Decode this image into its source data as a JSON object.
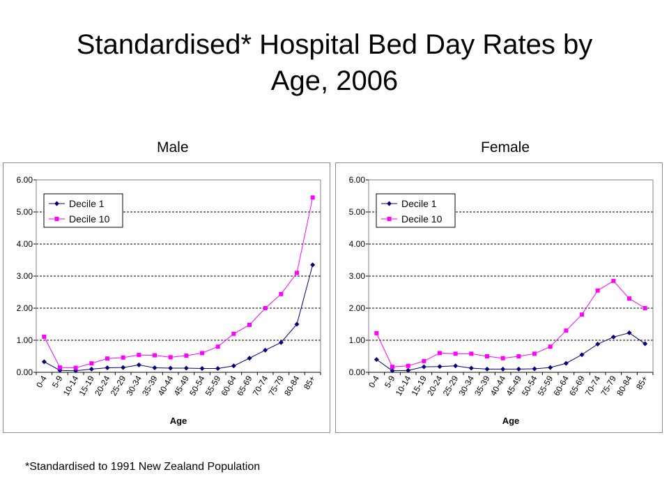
{
  "page": {
    "title_line1": "Standardised* Hospital Bed Day Rates by",
    "title_line2": "Age, 2006",
    "footnote": "*Standardised to 1991 New Zealand Population"
  },
  "chart_data": [
    {
      "type": "line",
      "panel_label": "Male",
      "xlabel": "Age",
      "ylabel": "",
      "ylim": [
        0,
        6
      ],
      "yticks": [
        "0.00",
        "1.00",
        "2.00",
        "3.00",
        "4.00",
        "5.00",
        "6.00"
      ],
      "grid": "horizontal dashed",
      "legend_position": "top-left",
      "categories": [
        "0-4",
        "5-9",
        "10-14",
        "15-19",
        "20-24",
        "25-29",
        "30-34",
        "35-39",
        "40-44",
        "45-49",
        "50-54",
        "55-59",
        "60-64",
        "65-69",
        "70-74",
        "75-79",
        "80-84",
        "85+"
      ],
      "series": [
        {
          "name": "Decile 1",
          "color": "#000080",
          "marker": "diamond",
          "values": [
            0.33,
            0.06,
            0.05,
            0.1,
            0.14,
            0.15,
            0.23,
            0.14,
            0.13,
            0.13,
            0.12,
            0.12,
            0.2,
            0.44,
            0.69,
            0.93,
            1.5,
            3.35
          ]
        },
        {
          "name": "Decile 10",
          "color": "#ff00ff",
          "marker": "square",
          "values": [
            1.11,
            0.15,
            0.14,
            0.28,
            0.43,
            0.46,
            0.54,
            0.53,
            0.47,
            0.52,
            0.6,
            0.8,
            1.2,
            1.48,
            2.0,
            2.44,
            3.1,
            5.45
          ]
        }
      ]
    },
    {
      "type": "line",
      "panel_label": "Female",
      "xlabel": "Age",
      "ylabel": "",
      "ylim": [
        0,
        6
      ],
      "yticks": [
        "0.00",
        "1.00",
        "2.00",
        "3.00",
        "4.00",
        "5.00",
        "6.00"
      ],
      "grid": "horizontal dashed",
      "legend_position": "top-left",
      "categories": [
        "0-4",
        "5-9",
        "10-14",
        "15-19",
        "20-24",
        "25-29",
        "30-34",
        "35-39",
        "40-44",
        "45-49",
        "50-54",
        "55-59",
        "60-64",
        "65-69",
        "70-74",
        "75-79",
        "80-84",
        "85+"
      ],
      "series": [
        {
          "name": "Decile 1",
          "color": "#000080",
          "marker": "diamond",
          "values": [
            0.4,
            0.05,
            0.06,
            0.17,
            0.18,
            0.2,
            0.13,
            0.1,
            0.1,
            0.1,
            0.11,
            0.15,
            0.28,
            0.55,
            0.88,
            1.1,
            1.23,
            0.89
          ]
        },
        {
          "name": "Decile 10",
          "color": "#ff00ff",
          "marker": "square",
          "values": [
            1.22,
            0.17,
            0.2,
            0.35,
            0.6,
            0.58,
            0.58,
            0.5,
            0.44,
            0.5,
            0.58,
            0.8,
            1.3,
            1.8,
            2.55,
            2.85,
            2.3,
            2.0
          ]
        }
      ]
    }
  ]
}
